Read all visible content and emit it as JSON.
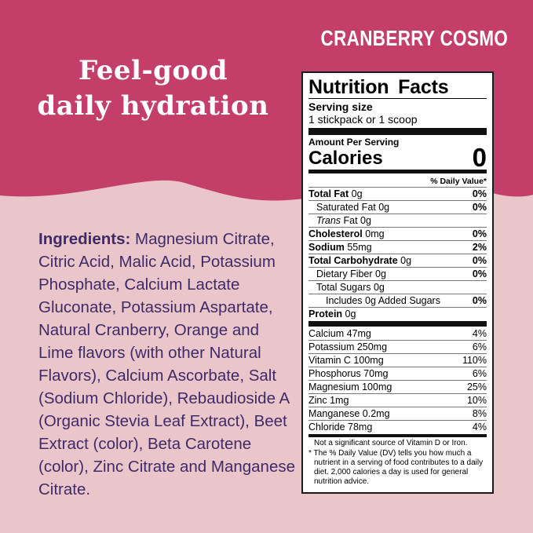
{
  "colors": {
    "top_background": "#c33f69",
    "bottom_background": "#eac6cb",
    "ingredients_text": "#3f2a68",
    "label_background": "#ffffff",
    "label_border": "#1a1a1a"
  },
  "flavor_title": "CRANBERRY COSMO",
  "headline": {
    "line1": "Feel-good",
    "line2": "daily hydration"
  },
  "ingredients": {
    "label": "Ingredients:",
    "text": " Magnesium Citrate, Citric Acid, Malic Acid, Potassium Phosphate, Calcium Lactate Gluconate, Potassium Aspartate, Natural Cranberry, Orange and Lime flavors (with other Natural Flavors), Calcium Ascorbate, Salt (Sodium Chloride), Rebaudioside A (Organic Stevia Leaf Extract), Beet Extract (color), Beta Carotene (color), Zinc Citrate and Manganese Citrate."
  },
  "nutrition": {
    "title": "Nutrition Facts",
    "serving_size_label": "Serving size",
    "serving_size_value": "1 stickpack or 1 scoop",
    "amount_per_serving": "Amount Per Serving",
    "calories_label": "Calories",
    "calories_value": "0",
    "daily_value_header": "% Daily Value*",
    "main_rows": [
      {
        "name": "Total Fat",
        "amount": "0g",
        "dv": "0%",
        "bold": true,
        "indent": 0
      },
      {
        "name": "Saturated Fat",
        "amount": "0g",
        "dv": "0%",
        "bold": false,
        "indent": 1
      },
      {
        "name": "Trans Fat",
        "amount": "0g",
        "dv": "",
        "bold": false,
        "indent": 1,
        "italic_part": "Trans"
      },
      {
        "name": "Cholesterol",
        "amount": "0mg",
        "dv": "0%",
        "bold": true,
        "indent": 0
      },
      {
        "name": "Sodium",
        "amount": "55mg",
        "dv": "2%",
        "bold": true,
        "indent": 0
      },
      {
        "name": "Total Carbohydrate",
        "amount": "0g",
        "dv": "0%",
        "bold": true,
        "indent": 0
      },
      {
        "name": "Dietary Fiber",
        "amount": "0g",
        "dv": "0%",
        "bold": false,
        "indent": 1
      },
      {
        "name": "Total Sugars",
        "amount": "0g",
        "dv": "",
        "bold": false,
        "indent": 1
      },
      {
        "name": "Includes 0g Added Sugars",
        "amount": "",
        "dv": "0%",
        "bold": false,
        "indent": 2
      },
      {
        "name": "Protein",
        "amount": "0g",
        "dv": "",
        "bold": true,
        "indent": 0
      }
    ],
    "mineral_rows": [
      {
        "name": "Calcium 47mg",
        "dv": "4%"
      },
      {
        "name": "Potassium 250mg",
        "dv": "6%"
      },
      {
        "name": "Vitamin C 100mg",
        "dv": "110%"
      },
      {
        "name": "Phosphorus 70mg",
        "dv": "6%"
      },
      {
        "name": "Magnesium 100mg",
        "dv": "25%"
      },
      {
        "name": "Zinc 1mg",
        "dv": "10%"
      },
      {
        "name": "Manganese 0.2mg",
        "dv": "8%"
      },
      {
        "name": "Chloride 78mg",
        "dv": "4%"
      }
    ],
    "footnote_line1": "Not a significant source of Vitamin D or Iron.",
    "footnote_line2": "* The % Daily Value (DV) tells you how much a nutrient in a serving of food contributes to a daily diet. 2,000 calories a day is used for general nutrition advice."
  }
}
